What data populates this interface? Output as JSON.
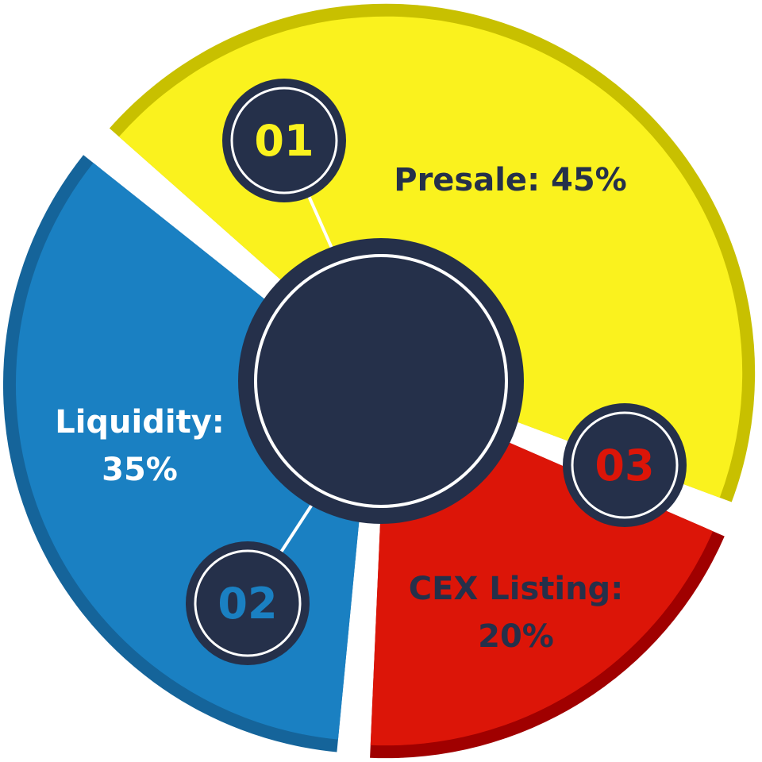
{
  "chart_data": {
    "type": "pie",
    "style": "donut-exploded-with-numbered-badges",
    "title": "",
    "legend": "none",
    "slices": [
      {
        "id": "presale",
        "number": "01",
        "label_lines": [
          "Presale: 45%"
        ],
        "value": 45,
        "color": "#FAF21E",
        "shade": "#C8C000",
        "text_color": "#25304A",
        "number_color": "#FAF21E"
      },
      {
        "id": "cex-listing",
        "number": "03",
        "label_lines": [
          "CEX Listing:",
          "20%"
        ],
        "value": 20,
        "color": "#DC1508",
        "shade": "#A00000",
        "text_color": "#25304A",
        "number_color": "#DC1508"
      },
      {
        "id": "liquidity",
        "number": "02",
        "label_lines": [
          "Liquidity:",
          "35%"
        ],
        "value": 35,
        "color": "#1A80C2",
        "shade": "#15649A",
        "text_color": "#FFFFFF",
        "number_color": "#1A80C2"
      }
    ],
    "center_color": "#25304A"
  }
}
